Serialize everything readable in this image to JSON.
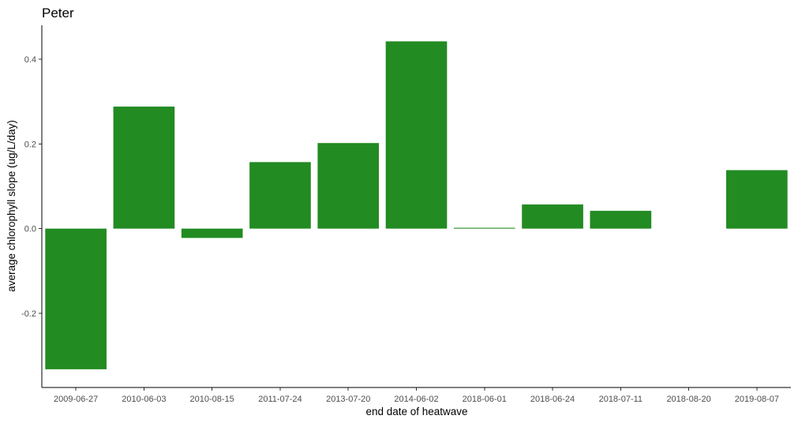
{
  "chart_data": {
    "type": "bar",
    "title": "Peter",
    "xlabel": "end date of heatwave",
    "ylabel": "average chlorophyll slope (ug/L/day)",
    "categories": [
      "2009-06-27",
      "2010-06-03",
      "2010-08-15",
      "2011-07-24",
      "2013-07-20",
      "2014-06-02",
      "2018-06-01",
      "2018-06-24",
      "2018-07-11",
      "2018-08-20",
      "2019-08-07"
    ],
    "values": [
      -0.332,
      0.288,
      -0.022,
      0.157,
      0.202,
      0.442,
      0.002,
      0.057,
      0.042,
      0.0,
      0.138
    ],
    "ylim": [
      -0.375,
      0.48
    ],
    "yticks": [
      -0.2,
      0.0,
      0.2,
      0.4
    ],
    "ytick_labels": [
      "-0.2",
      "0.0",
      "0.2",
      "0.4"
    ],
    "bar_color": "#228b22",
    "grid": false,
    "legend": "none"
  }
}
